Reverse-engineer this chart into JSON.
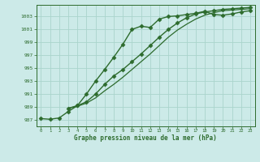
{
  "title": "Graphe pression niveau de la mer (hPa)",
  "bg_color": "#cceae8",
  "grid_color": "#aad4cc",
  "line_color": "#2d6b2d",
  "xlim": [
    -0.5,
    23.5
  ],
  "ylim": [
    986.0,
    1004.8
  ],
  "yticks": [
    987,
    989,
    991,
    993,
    995,
    997,
    999,
    1001,
    1003
  ],
  "xticks": [
    0,
    1,
    2,
    3,
    4,
    5,
    6,
    7,
    8,
    9,
    10,
    11,
    12,
    13,
    14,
    15,
    16,
    17,
    18,
    19,
    20,
    21,
    22,
    23
  ],
  "series": [
    {
      "x": [
        0,
        1,
        2,
        3,
        4,
        5,
        6,
        7,
        8,
        9,
        10,
        11,
        12,
        13,
        14,
        15,
        16,
        17,
        18,
        19,
        20,
        21,
        22,
        23
      ],
      "y": [
        987.2,
        987.1,
        987.3,
        988.3,
        989.2,
        991.0,
        993.0,
        994.8,
        996.7,
        998.7,
        1001.0,
        1001.5,
        1001.3,
        1002.6,
        1003.0,
        1003.1,
        1003.3,
        1003.5,
        1003.8,
        1003.3,
        1003.2,
        1003.4,
        1003.7,
        1003.9
      ],
      "marker": "D",
      "markersize": 2.5,
      "linewidth": 1.0,
      "zorder": 5
    },
    {
      "x": [
        3,
        4,
        5,
        6,
        7,
        8,
        9,
        10,
        11,
        12,
        13,
        14,
        15,
        16,
        17,
        18,
        19,
        20,
        21,
        22,
        23
      ],
      "y": [
        988.8,
        989.2,
        989.8,
        991.0,
        992.5,
        993.8,
        994.8,
        996.0,
        997.2,
        998.5,
        999.8,
        1001.0,
        1002.0,
        1002.8,
        1003.4,
        1003.7,
        1003.9,
        1004.1,
        1004.2,
        1004.3,
        1004.4
      ],
      "marker": "D",
      "markersize": 2.5,
      "linewidth": 1.0,
      "zorder": 4
    },
    {
      "x": [
        3,
        4,
        5,
        6,
        7,
        8,
        9,
        10,
        11,
        12,
        13,
        14,
        15,
        16,
        17,
        18,
        19,
        20,
        21,
        22,
        23
      ],
      "y": [
        988.8,
        989.1,
        989.6,
        990.4,
        991.5,
        992.5,
        993.6,
        994.8,
        996.0,
        997.2,
        998.5,
        999.8,
        1000.9,
        1001.8,
        1002.6,
        1003.2,
        1003.6,
        1003.9,
        1004.0,
        1004.1,
        1004.2
      ],
      "marker": null,
      "markersize": 0,
      "linewidth": 0.9,
      "zorder": 3
    }
  ]
}
